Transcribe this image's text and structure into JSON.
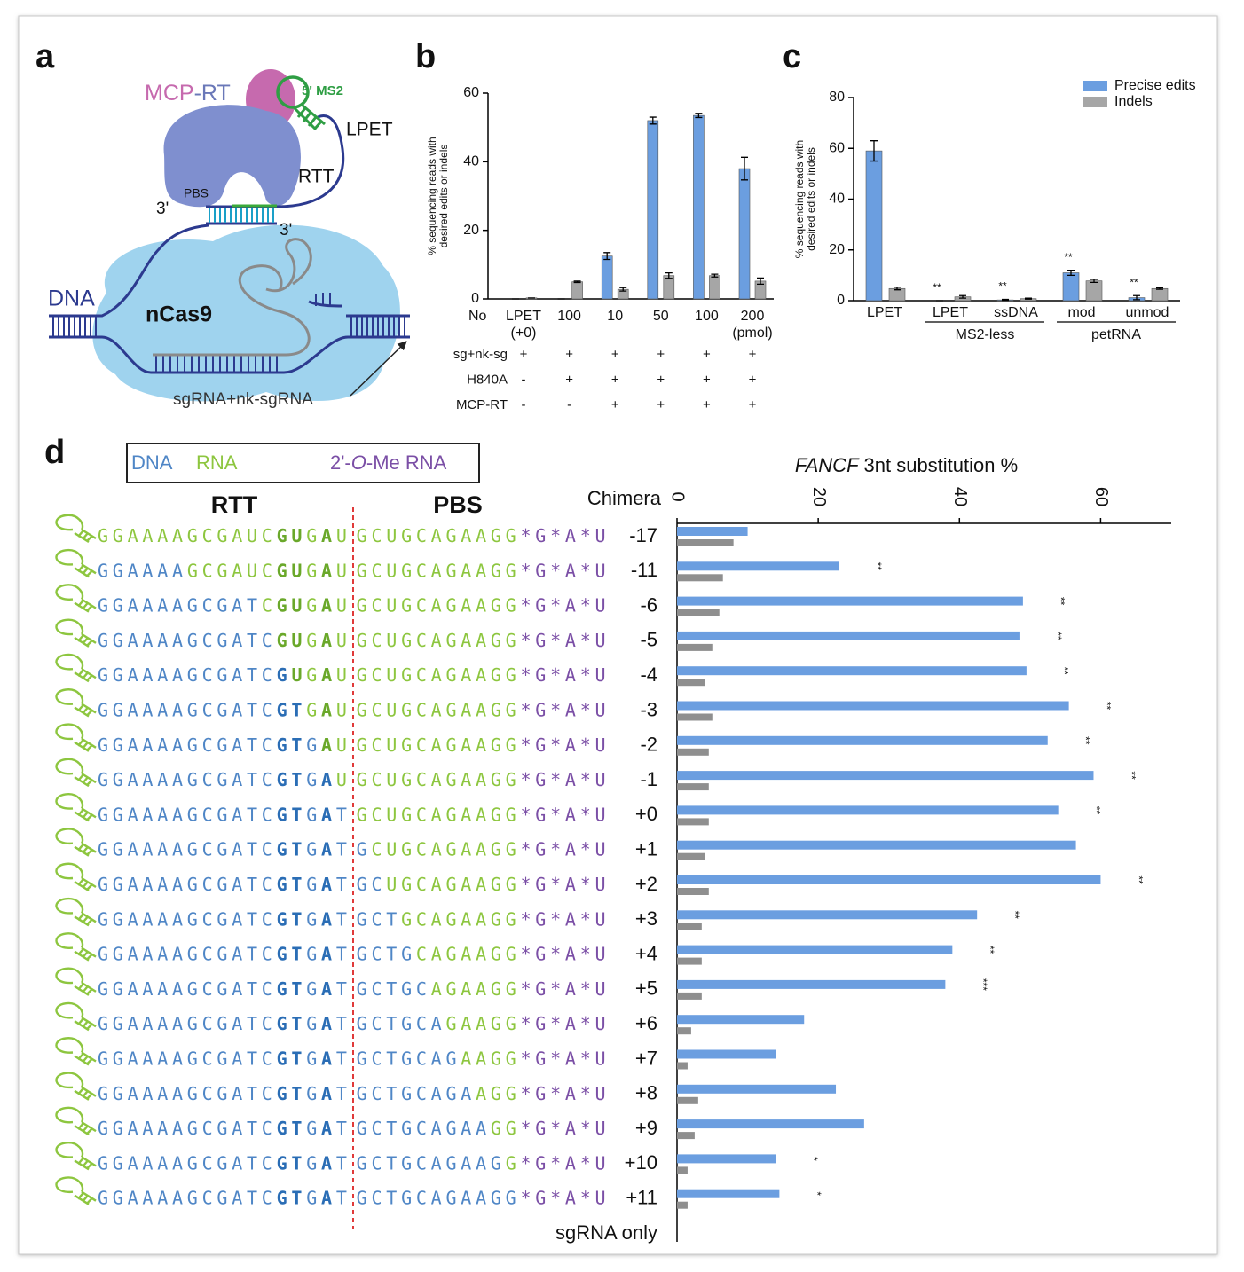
{
  "panel_labels": [
    "a",
    "b",
    "c",
    "d"
  ],
  "diagram": {
    "mcp": "MCP",
    "rt": "-RT",
    "ms2": "5' MS2",
    "lpet": "LPET",
    "rtt": "RTT",
    "pbs": "PBS",
    "three_prime": [
      "3'",
      "3'"
    ],
    "dna": "DNA",
    "ncas9": "nCas9",
    "sgrna": "sgRNA+nk-sgRNA"
  },
  "sequence_legend": {
    "dna": "DNA",
    "rna": "RNA",
    "ome": [
      "2'-",
      "O",
      "-Me RNA"
    ]
  },
  "sequence_headers": {
    "rtt": "RTT",
    "pbs": "PBS"
  },
  "sequence_colors": {
    "d": "#4f86c6",
    "db": "#2a6db5",
    "r": "#8dc63f",
    "rb": "#6aa82a",
    "m": "#7b4fa6"
  },
  "sequences": [
    [
      [
        "GGAAAAGCGAUC",
        "r"
      ],
      [
        "GU",
        "rb"
      ],
      [
        "G",
        "r"
      ],
      [
        "A",
        "rb"
      ],
      [
        "U",
        "r"
      ],
      [
        "GCUGCAGAAGG",
        "r"
      ],
      [
        "*G*A*U",
        "m"
      ]
    ],
    [
      [
        "GGAAAA",
        "d"
      ],
      [
        "GCGAUC",
        "r"
      ],
      [
        "GU",
        "rb"
      ],
      [
        "G",
        "r"
      ],
      [
        "A",
        "rb"
      ],
      [
        "U",
        "r"
      ],
      [
        "GCUGCAGAAGG",
        "r"
      ],
      [
        "*G*A*U",
        "m"
      ]
    ],
    [
      [
        "GGAAAAGCGAT",
        "d"
      ],
      [
        "C",
        "r"
      ],
      [
        "GU",
        "rb"
      ],
      [
        "G",
        "r"
      ],
      [
        "A",
        "rb"
      ],
      [
        "U",
        "r"
      ],
      [
        "GCUGCAGAAGG",
        "r"
      ],
      [
        "*G*A*U",
        "m"
      ]
    ],
    [
      [
        "GGAAAAGCGATC",
        "d"
      ],
      [
        "GU",
        "rb"
      ],
      [
        "G",
        "r"
      ],
      [
        "A",
        "rb"
      ],
      [
        "U",
        "r"
      ],
      [
        "GCUGCAGAAGG",
        "r"
      ],
      [
        "*G*A*U",
        "m"
      ]
    ],
    [
      [
        "GGAAAAGCGATC",
        "d"
      ],
      [
        "G",
        "db"
      ],
      [
        "U",
        "rb"
      ],
      [
        "G",
        "r"
      ],
      [
        "A",
        "rb"
      ],
      [
        "U",
        "r"
      ],
      [
        "GCUGCAGAAGG",
        "r"
      ],
      [
        "*G*A*U",
        "m"
      ]
    ],
    [
      [
        "GGAAAAGCGATC",
        "d"
      ],
      [
        "GT",
        "db"
      ],
      [
        "G",
        "r"
      ],
      [
        "A",
        "rb"
      ],
      [
        "U",
        "r"
      ],
      [
        "GCUGCAGAAGG",
        "r"
      ],
      [
        "*G*A*U",
        "m"
      ]
    ],
    [
      [
        "GGAAAAGCGATC",
        "d"
      ],
      [
        "GT",
        "db"
      ],
      [
        "G",
        "d"
      ],
      [
        "A",
        "rb"
      ],
      [
        "U",
        "r"
      ],
      [
        "GCUGCAGAAGG",
        "r"
      ],
      [
        "*G*A*U",
        "m"
      ]
    ],
    [
      [
        "GGAAAAGCGATC",
        "d"
      ],
      [
        "GT",
        "db"
      ],
      [
        "G",
        "d"
      ],
      [
        "A",
        "db"
      ],
      [
        "U",
        "r"
      ],
      [
        "GCUGCAGAAGG",
        "r"
      ],
      [
        "*G*A*U",
        "m"
      ]
    ],
    [
      [
        "GGAAAAGCGATC",
        "d"
      ],
      [
        "GT",
        "db"
      ],
      [
        "G",
        "d"
      ],
      [
        "A",
        "db"
      ],
      [
        "T",
        "d"
      ],
      [
        "GCUGCAGAAGG",
        "r"
      ],
      [
        "*G*A*U",
        "m"
      ]
    ],
    [
      [
        "GGAAAAGCGATC",
        "d"
      ],
      [
        "GT",
        "db"
      ],
      [
        "G",
        "d"
      ],
      [
        "A",
        "db"
      ],
      [
        "T",
        "d"
      ],
      [
        "G",
        "d"
      ],
      [
        "CUGCAGAAGG",
        "r"
      ],
      [
        "*G*A*U",
        "m"
      ]
    ],
    [
      [
        "GGAAAAGCGATC",
        "d"
      ],
      [
        "GT",
        "db"
      ],
      [
        "G",
        "d"
      ],
      [
        "A",
        "db"
      ],
      [
        "T",
        "d"
      ],
      [
        "GC",
        "d"
      ],
      [
        "UGCAGAAGG",
        "r"
      ],
      [
        "*G*A*U",
        "m"
      ]
    ],
    [
      [
        "GGAAAAGCGATC",
        "d"
      ],
      [
        "GT",
        "db"
      ],
      [
        "G",
        "d"
      ],
      [
        "A",
        "db"
      ],
      [
        "T",
        "d"
      ],
      [
        "GCT",
        "d"
      ],
      [
        "GCAGAAGG",
        "r"
      ],
      [
        "*G*A*U",
        "m"
      ]
    ],
    [
      [
        "GGAAAAGCGATC",
        "d"
      ],
      [
        "GT",
        "db"
      ],
      [
        "G",
        "d"
      ],
      [
        "A",
        "db"
      ],
      [
        "T",
        "d"
      ],
      [
        "GCTG",
        "d"
      ],
      [
        "CAGAAGG",
        "r"
      ],
      [
        "*G*A*U",
        "m"
      ]
    ],
    [
      [
        "GGAAAAGCGATC",
        "d"
      ],
      [
        "GT",
        "db"
      ],
      [
        "G",
        "d"
      ],
      [
        "A",
        "db"
      ],
      [
        "T",
        "d"
      ],
      [
        "GCTGC",
        "d"
      ],
      [
        "AGAAGG",
        "r"
      ],
      [
        "*G*A*U",
        "m"
      ]
    ],
    [
      [
        "GGAAAAGCGATC",
        "d"
      ],
      [
        "GT",
        "db"
      ],
      [
        "G",
        "d"
      ],
      [
        "A",
        "db"
      ],
      [
        "T",
        "d"
      ],
      [
        "GCTGCA",
        "d"
      ],
      [
        "GAAGG",
        "r"
      ],
      [
        "*G*A*U",
        "m"
      ]
    ],
    [
      [
        "GGAAAAGCGATC",
        "d"
      ],
      [
        "GT",
        "db"
      ],
      [
        "G",
        "d"
      ],
      [
        "A",
        "db"
      ],
      [
        "T",
        "d"
      ],
      [
        "GCTGCAG",
        "d"
      ],
      [
        "AAGG",
        "r"
      ],
      [
        "*G*A*U",
        "m"
      ]
    ],
    [
      [
        "GGAAAAGCGATC",
        "d"
      ],
      [
        "GT",
        "db"
      ],
      [
        "G",
        "d"
      ],
      [
        "A",
        "db"
      ],
      [
        "T",
        "d"
      ],
      [
        "GCTGCAGA",
        "d"
      ],
      [
        "AGG",
        "r"
      ],
      [
        "*G*A*U",
        "m"
      ]
    ],
    [
      [
        "GGAAAAGCGATC",
        "d"
      ],
      [
        "GT",
        "db"
      ],
      [
        "G",
        "d"
      ],
      [
        "A",
        "db"
      ],
      [
        "T",
        "d"
      ],
      [
        "GCTGCAGAA",
        "d"
      ],
      [
        "GG",
        "r"
      ],
      [
        "*G*A*U",
        "m"
      ]
    ],
    [
      [
        "GGAAAAGCGATC",
        "d"
      ],
      [
        "GT",
        "db"
      ],
      [
        "G",
        "d"
      ],
      [
        "A",
        "db"
      ],
      [
        "T",
        "d"
      ],
      [
        "GCTGCAGAAG",
        "d"
      ],
      [
        "G",
        "r"
      ],
      [
        "*G*A*U",
        "m"
      ]
    ],
    [
      [
        "GGAAAAGCGATC",
        "d"
      ],
      [
        "GT",
        "db"
      ],
      [
        "G",
        "d"
      ],
      [
        "A",
        "db"
      ],
      [
        "T",
        "d"
      ],
      [
        "GCTGCAGAAGG",
        "d"
      ],
      [
        "*G*A*U",
        "m"
      ]
    ]
  ],
  "chart_data": [
    {
      "type": "bar",
      "y_label": [
        "% sequencing reads with",
        "desired edits or indels"
      ],
      "x_row_label": "No",
      "categories": [
        [
          "LPET",
          "(+0)"
        ],
        [
          "100"
        ],
        [
          "10"
        ],
        [
          "50"
        ],
        [
          "100"
        ],
        [
          "200",
          "(pmol)"
        ]
      ],
      "series": [
        {
          "color": "#6b9ee0",
          "values": [
            0,
            0,
            12.5,
            52,
            53.5,
            38
          ],
          "errors": [
            0,
            0,
            1,
            1,
            0.6,
            3.3
          ]
        },
        {
          "color": "#a6a6a6",
          "values": [
            0.3,
            5,
            2.8,
            6.8,
            6.8,
            5.2
          ],
          "errors": [
            0,
            0.2,
            0.5,
            0.8,
            0.4,
            0.9
          ]
        }
      ],
      "rows": [
        {
          "label": "sg+nk-sg",
          "signs": [
            "+",
            "+",
            "+",
            "+",
            "+",
            "+"
          ]
        },
        {
          "label": "H840A",
          "signs": [
            "-",
            "+",
            "+",
            "+",
            "+",
            "+"
          ]
        },
        {
          "label": "MCP-RT",
          "signs": [
            "-",
            "-",
            "+",
            "+",
            "+",
            "+"
          ]
        }
      ],
      "ylim": [
        0,
        60
      ],
      "yticks": [
        0,
        20,
        40,
        60
      ]
    },
    {
      "type": "bar",
      "y_label": [
        "% sequencing reads with",
        "desired edits or indels"
      ],
      "categories": [
        "LPET",
        "LPET",
        "ssDNA",
        "mod",
        "unmod"
      ],
      "groups": [
        {
          "label": "MS2-less",
          "span": [
            1,
            2
          ]
        },
        {
          "label": "petRNA",
          "span": [
            3,
            4
          ]
        }
      ],
      "series": [
        {
          "name": "Precise edits",
          "color": "#6b9ee0",
          "values": [
            59,
            0,
            0.3,
            11,
            1.2
          ],
          "errors": [
            4,
            0,
            0.2,
            1,
            0.8
          ]
        },
        {
          "name": "Indels",
          "color": "#a6a6a6",
          "values": [
            4.8,
            1.5,
            0.8,
            7.8,
            4.8
          ],
          "errors": [
            0.5,
            0.5,
            0.2,
            0.6,
            0.3
          ]
        }
      ],
      "significance": [
        null,
        "**",
        "**",
        "**",
        "**"
      ],
      "legend": "upper right",
      "ylim": [
        0,
        80
      ],
      "yticks": [
        0,
        20,
        40,
        60,
        80
      ]
    },
    {
      "type": "barh",
      "x_label": [
        "FANCF",
        "3nt substitution %"
      ],
      "y_label": "Chimera",
      "categories": [
        "-17",
        "-11",
        "-6",
        "-5",
        "-4",
        "-3",
        "-2",
        "-1",
        "+0",
        "+1",
        "+2",
        "+3",
        "+4",
        "+5",
        "+6",
        "+7",
        "+8",
        "+9",
        "+10",
        "+11",
        "sgRNA only"
      ],
      "series": [
        {
          "color": "#6b9ee0",
          "values": [
            10,
            23,
            49,
            48.5,
            49.5,
            55.5,
            52.5,
            59,
            54,
            56.5,
            60,
            42.5,
            39,
            38,
            18,
            14,
            22.5,
            26.5,
            14,
            14.5,
            0
          ]
        },
        {
          "color": "#8f8f8f",
          "values": [
            8,
            6.5,
            6,
            5,
            4,
            5,
            4.5,
            4.5,
            4.5,
            4,
            4.5,
            3.5,
            3.5,
            3.5,
            2,
            1.5,
            3,
            2.5,
            1.5,
            1.5,
            0
          ]
        }
      ],
      "significance": [
        null,
        "**",
        "**",
        "**",
        "**",
        "**",
        "**",
        "**",
        "**",
        null,
        "**",
        "**",
        "**",
        "***",
        null,
        null,
        null,
        null,
        "*",
        "*",
        null
      ],
      "xlim": [
        0,
        70
      ],
      "xticks": [
        0,
        20,
        40,
        60
      ]
    }
  ]
}
